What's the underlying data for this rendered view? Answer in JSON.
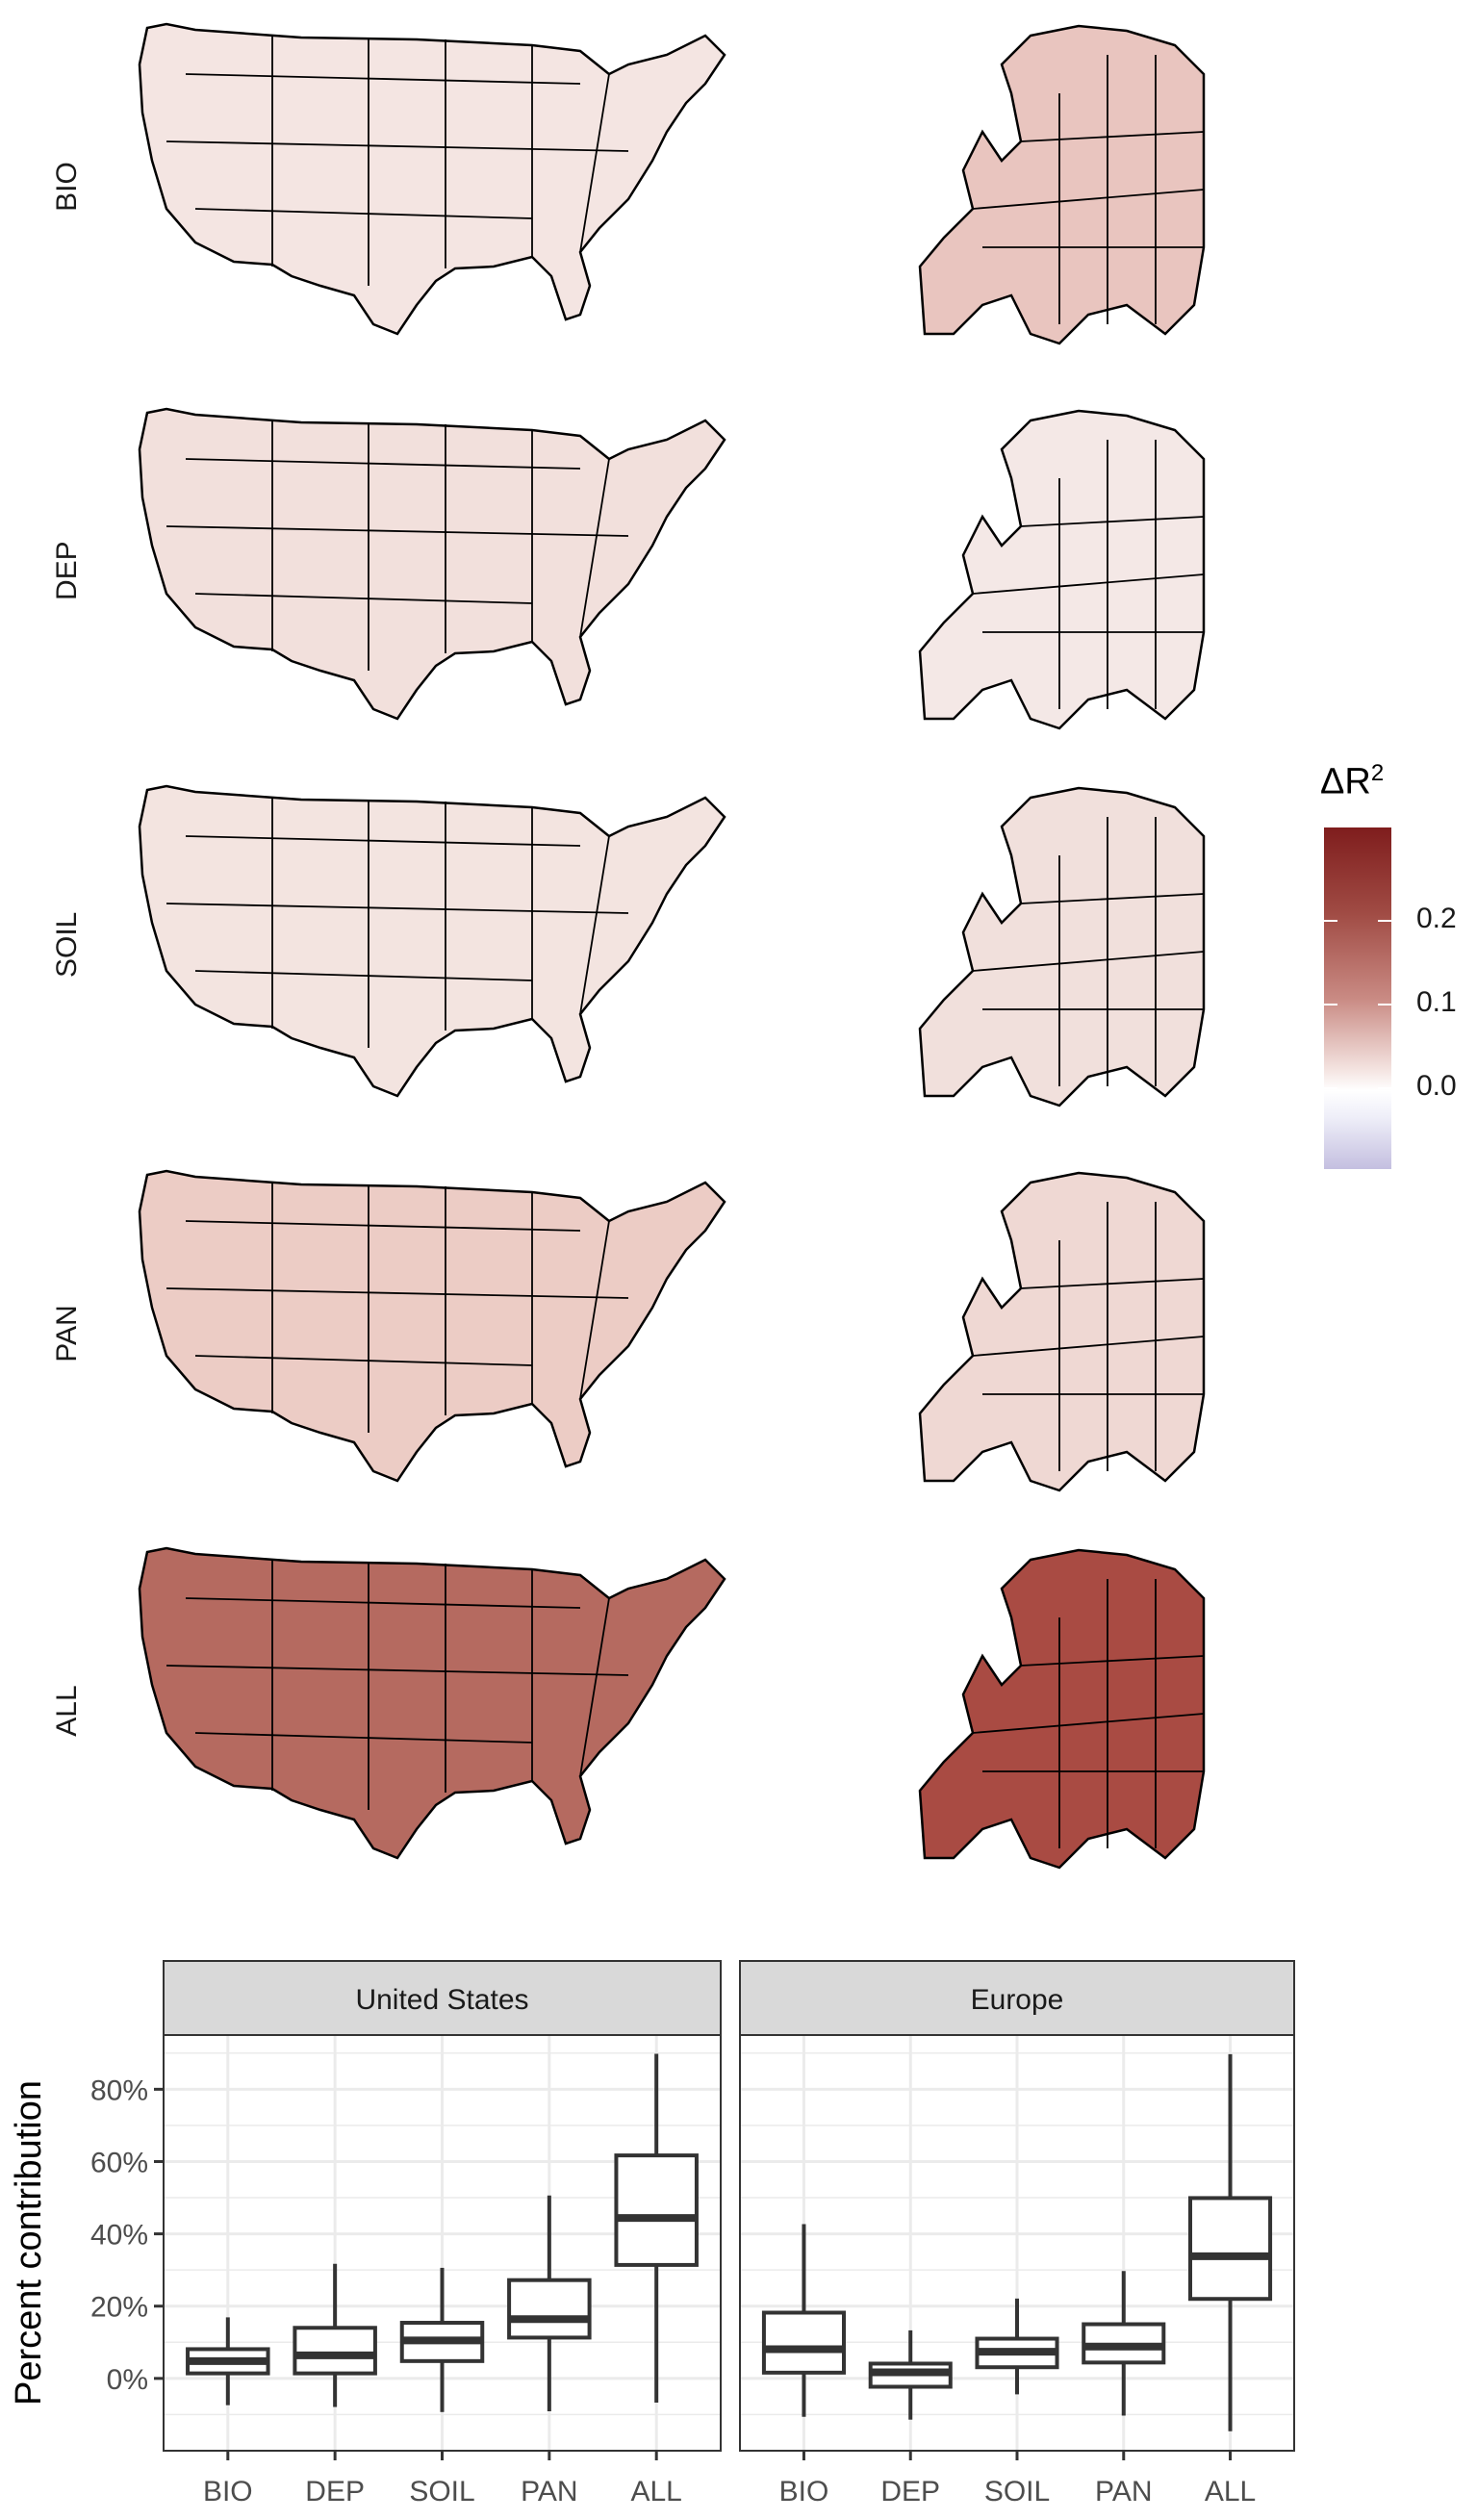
{
  "maps": {
    "rows": [
      {
        "label": "BIO",
        "us_fill": "#f4e5e2",
        "eu_fill": "#e9c5bf"
      },
      {
        "label": "DEP",
        "us_fill": "#f2e0dc",
        "eu_fill": "#f4e8e6"
      },
      {
        "label": "SOIL",
        "us_fill": "#f3e4e0",
        "eu_fill": "#f1e0dc"
      },
      {
        "label": "PAN",
        "us_fill": "#ecccc5",
        "eu_fill": "#efd8d3"
      },
      {
        "label": "ALL",
        "us_fill": "#b56a60",
        "eu_fill": "#a94b43"
      }
    ],
    "legend": {
      "title": "ΔR",
      "title_sup": "2",
      "ticks": [
        "0.2",
        "0.1",
        "0.0"
      ],
      "colors": {
        "high": "#7f1d1d",
        "zero": "#ffffff",
        "low": "#c4bfe0"
      }
    }
  },
  "chart_data": {
    "type": "boxplot",
    "ylabel": "Percent contribution",
    "xlabel": "",
    "categories": [
      "BIO",
      "DEP",
      "SOIL",
      "PAN",
      "ALL"
    ],
    "ylim": [
      -20,
      95
    ],
    "yticks": [
      0,
      20,
      40,
      60,
      80
    ],
    "ytick_labels": [
      "0%",
      "20%",
      "40%",
      "60%",
      "80%"
    ],
    "grid": true,
    "panels": [
      {
        "title": "United States",
        "boxes": [
          {
            "category": "BIO",
            "min": -7.4,
            "q1": 1.4,
            "median": 4.8,
            "q3": 8.1,
            "max": 16.9
          },
          {
            "category": "DEP",
            "min": -7.9,
            "q1": 1.4,
            "median": 6.4,
            "q3": 14.0,
            "max": 31.7
          },
          {
            "category": "SOIL",
            "min": -9.3,
            "q1": 4.8,
            "median": 10.5,
            "q3": 15.4,
            "max": 30.6
          },
          {
            "category": "PAN",
            "min": -9.1,
            "q1": 11.3,
            "median": 16.4,
            "q3": 27.2,
            "max": 50.6
          },
          {
            "category": "ALL",
            "min": -6.7,
            "q1": 31.4,
            "median": 44.4,
            "q3": 61.7,
            "max": 89.8
          }
        ]
      },
      {
        "title": "Europe",
        "boxes": [
          {
            "category": "BIO",
            "min": -10.6,
            "q1": 1.6,
            "median": 8.1,
            "q3": 18.2,
            "max": 42.7
          },
          {
            "category": "DEP",
            "min": -11.4,
            "q1": -2.3,
            "median": 1.7,
            "q3": 4.1,
            "max": 13.3
          },
          {
            "category": "SOIL",
            "min": -4.4,
            "q1": 3.1,
            "median": 7.4,
            "q3": 11.0,
            "max": 22.1
          },
          {
            "category": "PAN",
            "min": -10.3,
            "q1": 4.4,
            "median": 8.8,
            "q3": 15.0,
            "max": 29.7
          },
          {
            "category": "ALL",
            "min": -14.6,
            "q1": 22.0,
            "median": 33.8,
            "q3": 49.9,
            "max": 89.7
          }
        ]
      }
    ]
  }
}
